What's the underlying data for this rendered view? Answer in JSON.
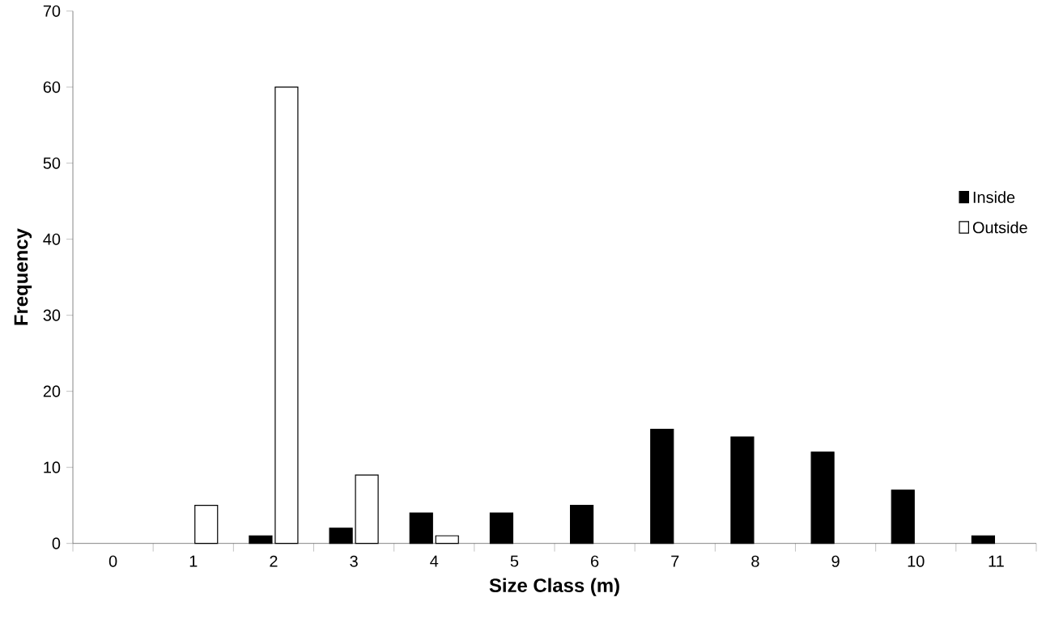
{
  "chart_data": {
    "type": "bar",
    "xlabel": "Size Class (m)",
    "ylabel": "Frequency",
    "categories": [
      "0",
      "1",
      "2",
      "3",
      "4",
      "5",
      "6",
      "7",
      "8",
      "9",
      "10",
      "11"
    ],
    "series": [
      {
        "name": "Inside",
        "color": "#000000",
        "values": [
          0,
          0,
          1,
          2,
          4,
          4,
          5,
          15,
          14,
          12,
          7,
          1
        ]
      },
      {
        "name": "Outside",
        "color": "#ffffff",
        "values": [
          0,
          5,
          60,
          9,
          1,
          0,
          0,
          0,
          0,
          0,
          0,
          0
        ]
      }
    ],
    "ylim": [
      0,
      70
    ],
    "yticks": [
      0,
      10,
      20,
      30,
      40,
      50,
      60,
      70
    ],
    "grid": false,
    "legend": "right"
  }
}
